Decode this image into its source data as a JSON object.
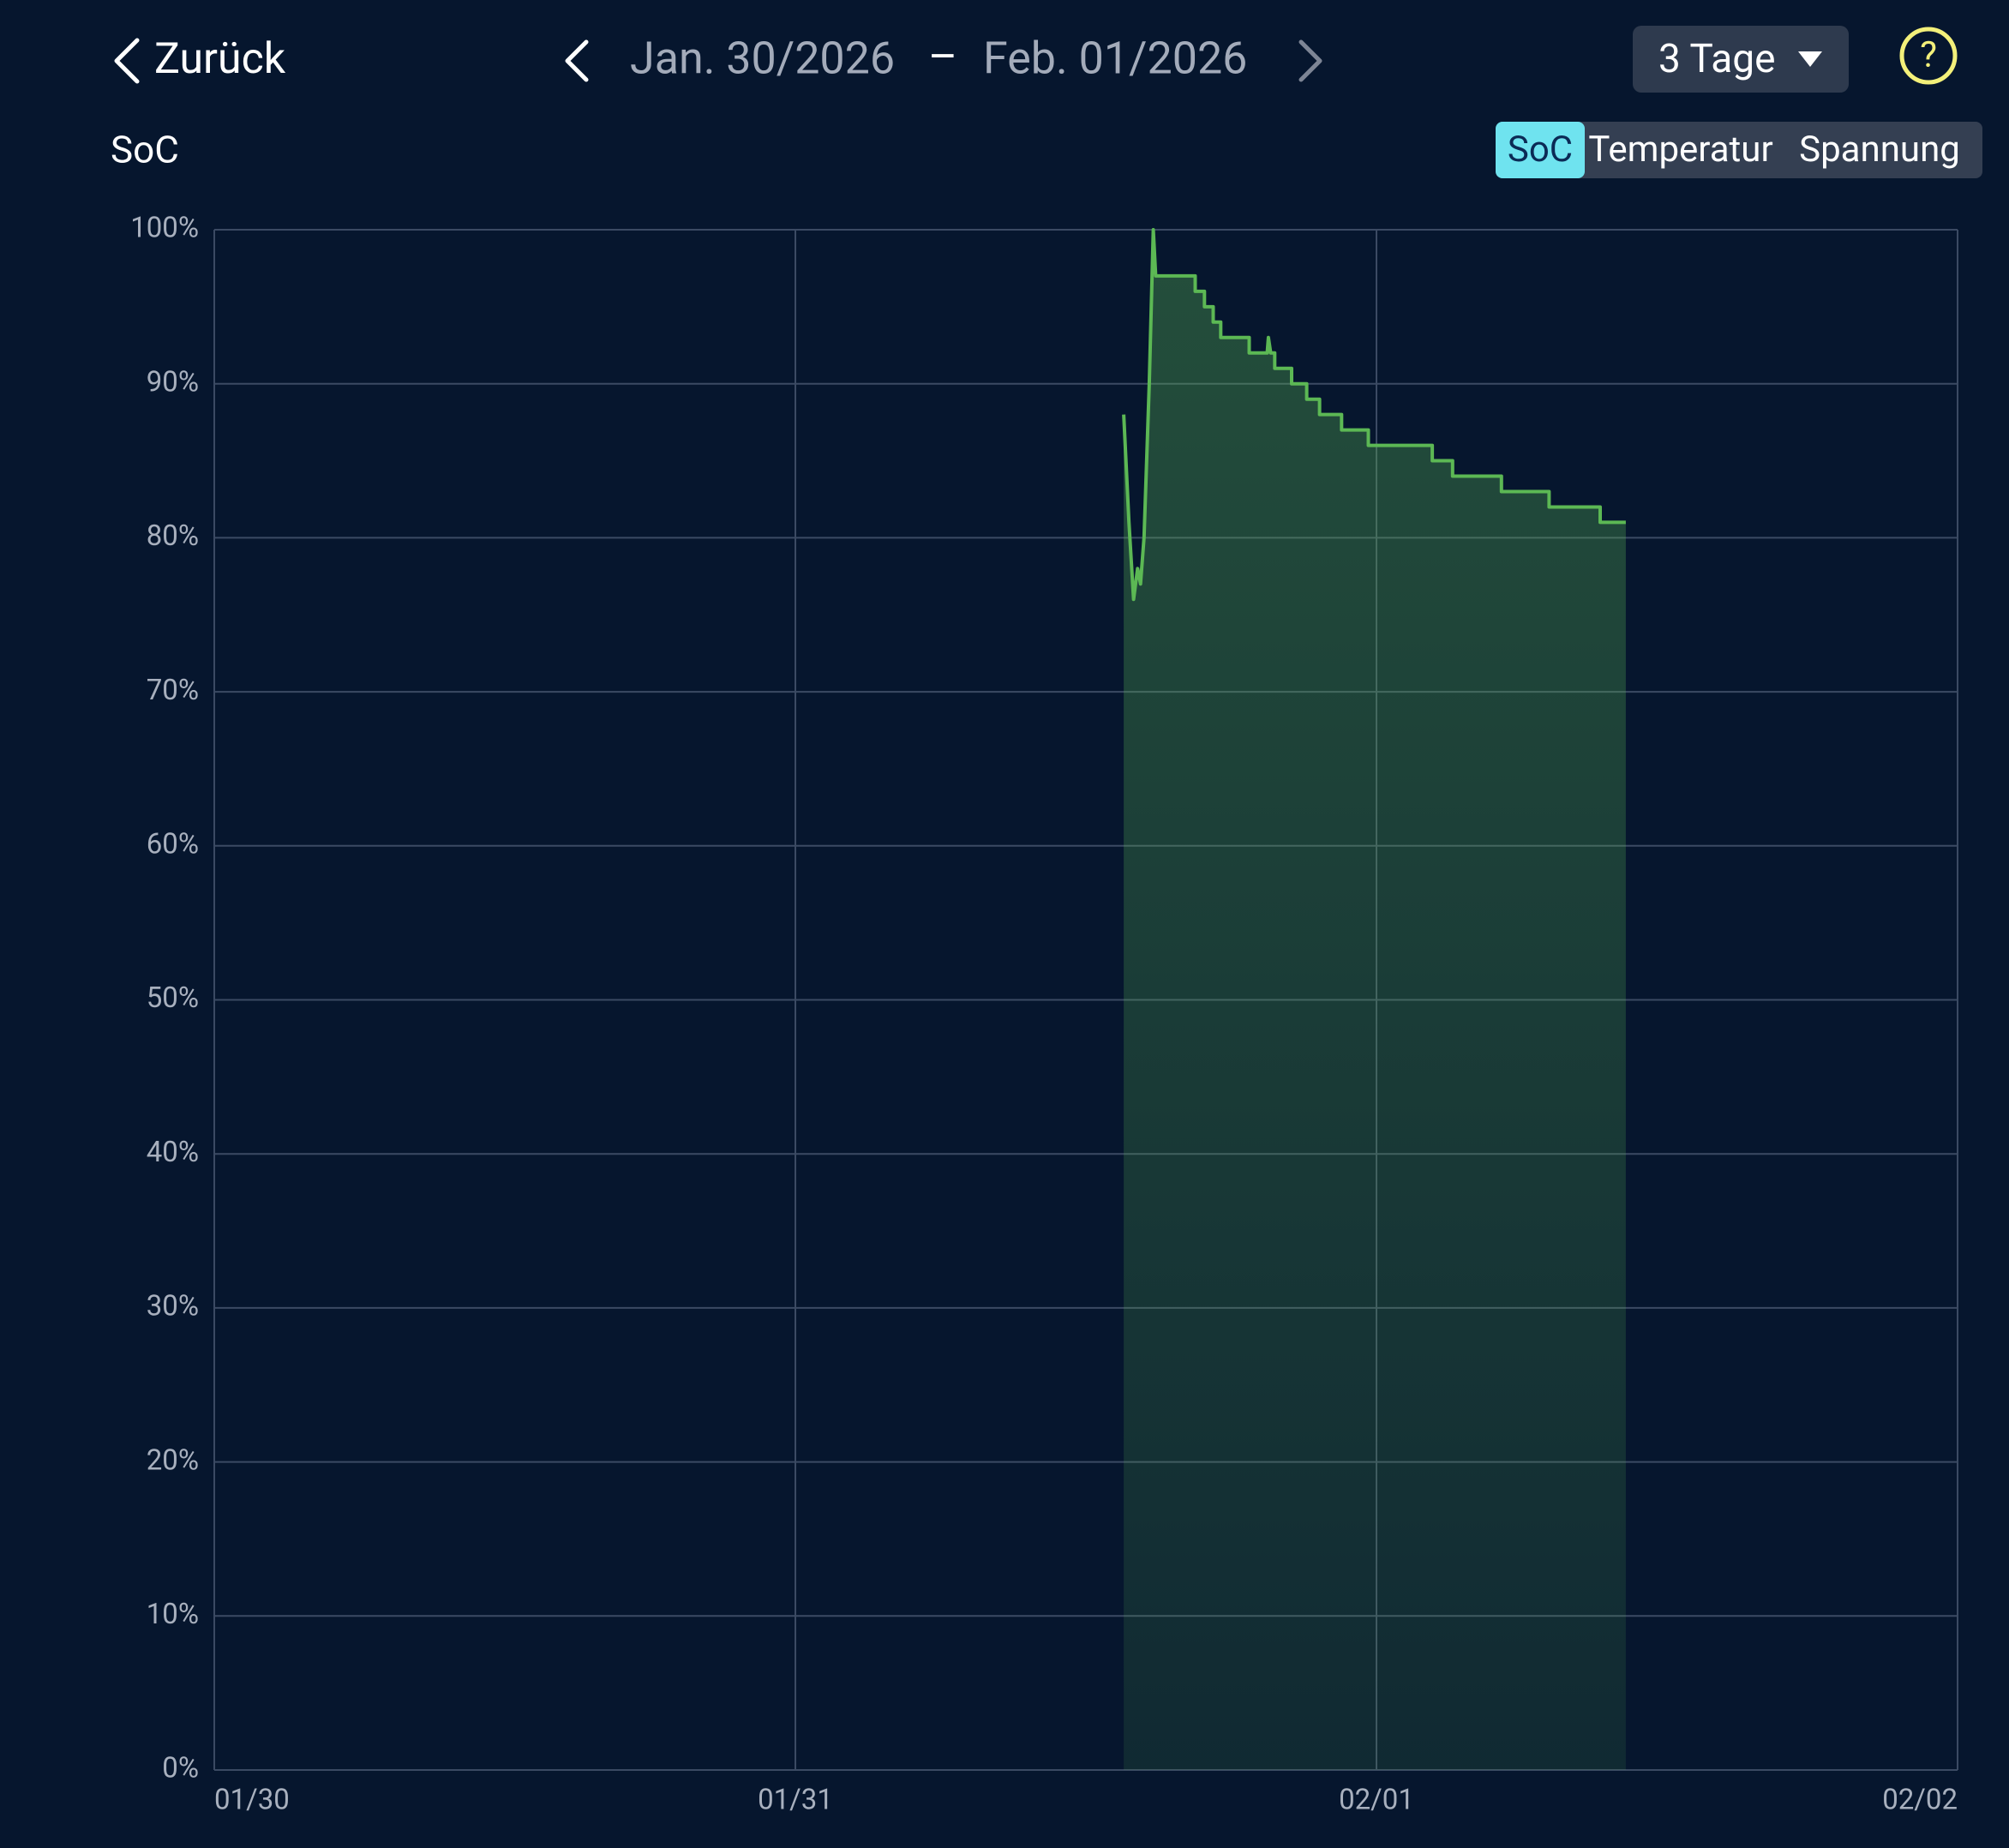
{
  "header": {
    "back": "Zurück",
    "date_from": "Jan. 30/2026",
    "separator": "–",
    "date_to": "Feb. 01/2026",
    "range": "3 Tage",
    "help": "?"
  },
  "tabs": {
    "items": [
      "SoC",
      "Temperatur",
      "Spannung"
    ],
    "selected": 0
  },
  "chart_data": {
    "type": "area",
    "title": "SoC",
    "color": "#5cb854",
    "grid": true,
    "xlim": [
      0,
      3
    ],
    "xticks": [
      {
        "value": 0,
        "label": "01/30"
      },
      {
        "value": 1,
        "label": "01/31"
      },
      {
        "value": 2,
        "label": "02/01"
      },
      {
        "value": 3,
        "label": "02/02"
      }
    ],
    "ylim": [
      0,
      100
    ],
    "yticks": [
      {
        "value": 0,
        "label": "0%"
      },
      {
        "value": 10,
        "label": "10%"
      },
      {
        "value": 20,
        "label": "20%"
      },
      {
        "value": 30,
        "label": "30%"
      },
      {
        "value": 40,
        "label": "40%"
      },
      {
        "value": 50,
        "label": "50%"
      },
      {
        "value": 60,
        "label": "60%"
      },
      {
        "value": 70,
        "label": "70%"
      },
      {
        "value": 80,
        "label": "80%"
      },
      {
        "value": 90,
        "label": "90%"
      },
      {
        "value": 100,
        "label": "100%"
      }
    ],
    "x": [
      1.565,
      1.574,
      1.582,
      1.589,
      1.594,
      1.6,
      1.609,
      1.616,
      1.62,
      1.688,
      1.688,
      1.704,
      1.704,
      1.719,
      1.719,
      1.732,
      1.732,
      1.781,
      1.781,
      1.812,
      1.814,
      1.818,
      1.825,
      1.825,
      1.854,
      1.854,
      1.88,
      1.88,
      1.902,
      1.902,
      1.94,
      1.94,
      1.986,
      1.986,
      2.096,
      2.096,
      2.131,
      2.131,
      2.215,
      2.215,
      2.297,
      2.297,
      2.385,
      2.385,
      2.429
    ],
    "values": [
      88,
      81,
      76,
      78,
      77,
      80,
      90,
      100,
      97,
      97,
      96,
      96,
      95,
      95,
      94,
      94,
      93,
      93,
      92,
      92,
      93,
      92,
      92,
      91,
      91,
      90,
      90,
      89,
      89,
      88,
      88,
      87,
      87,
      86,
      86,
      85,
      85,
      84,
      84,
      83,
      83,
      82,
      82,
      81,
      81
    ]
  }
}
